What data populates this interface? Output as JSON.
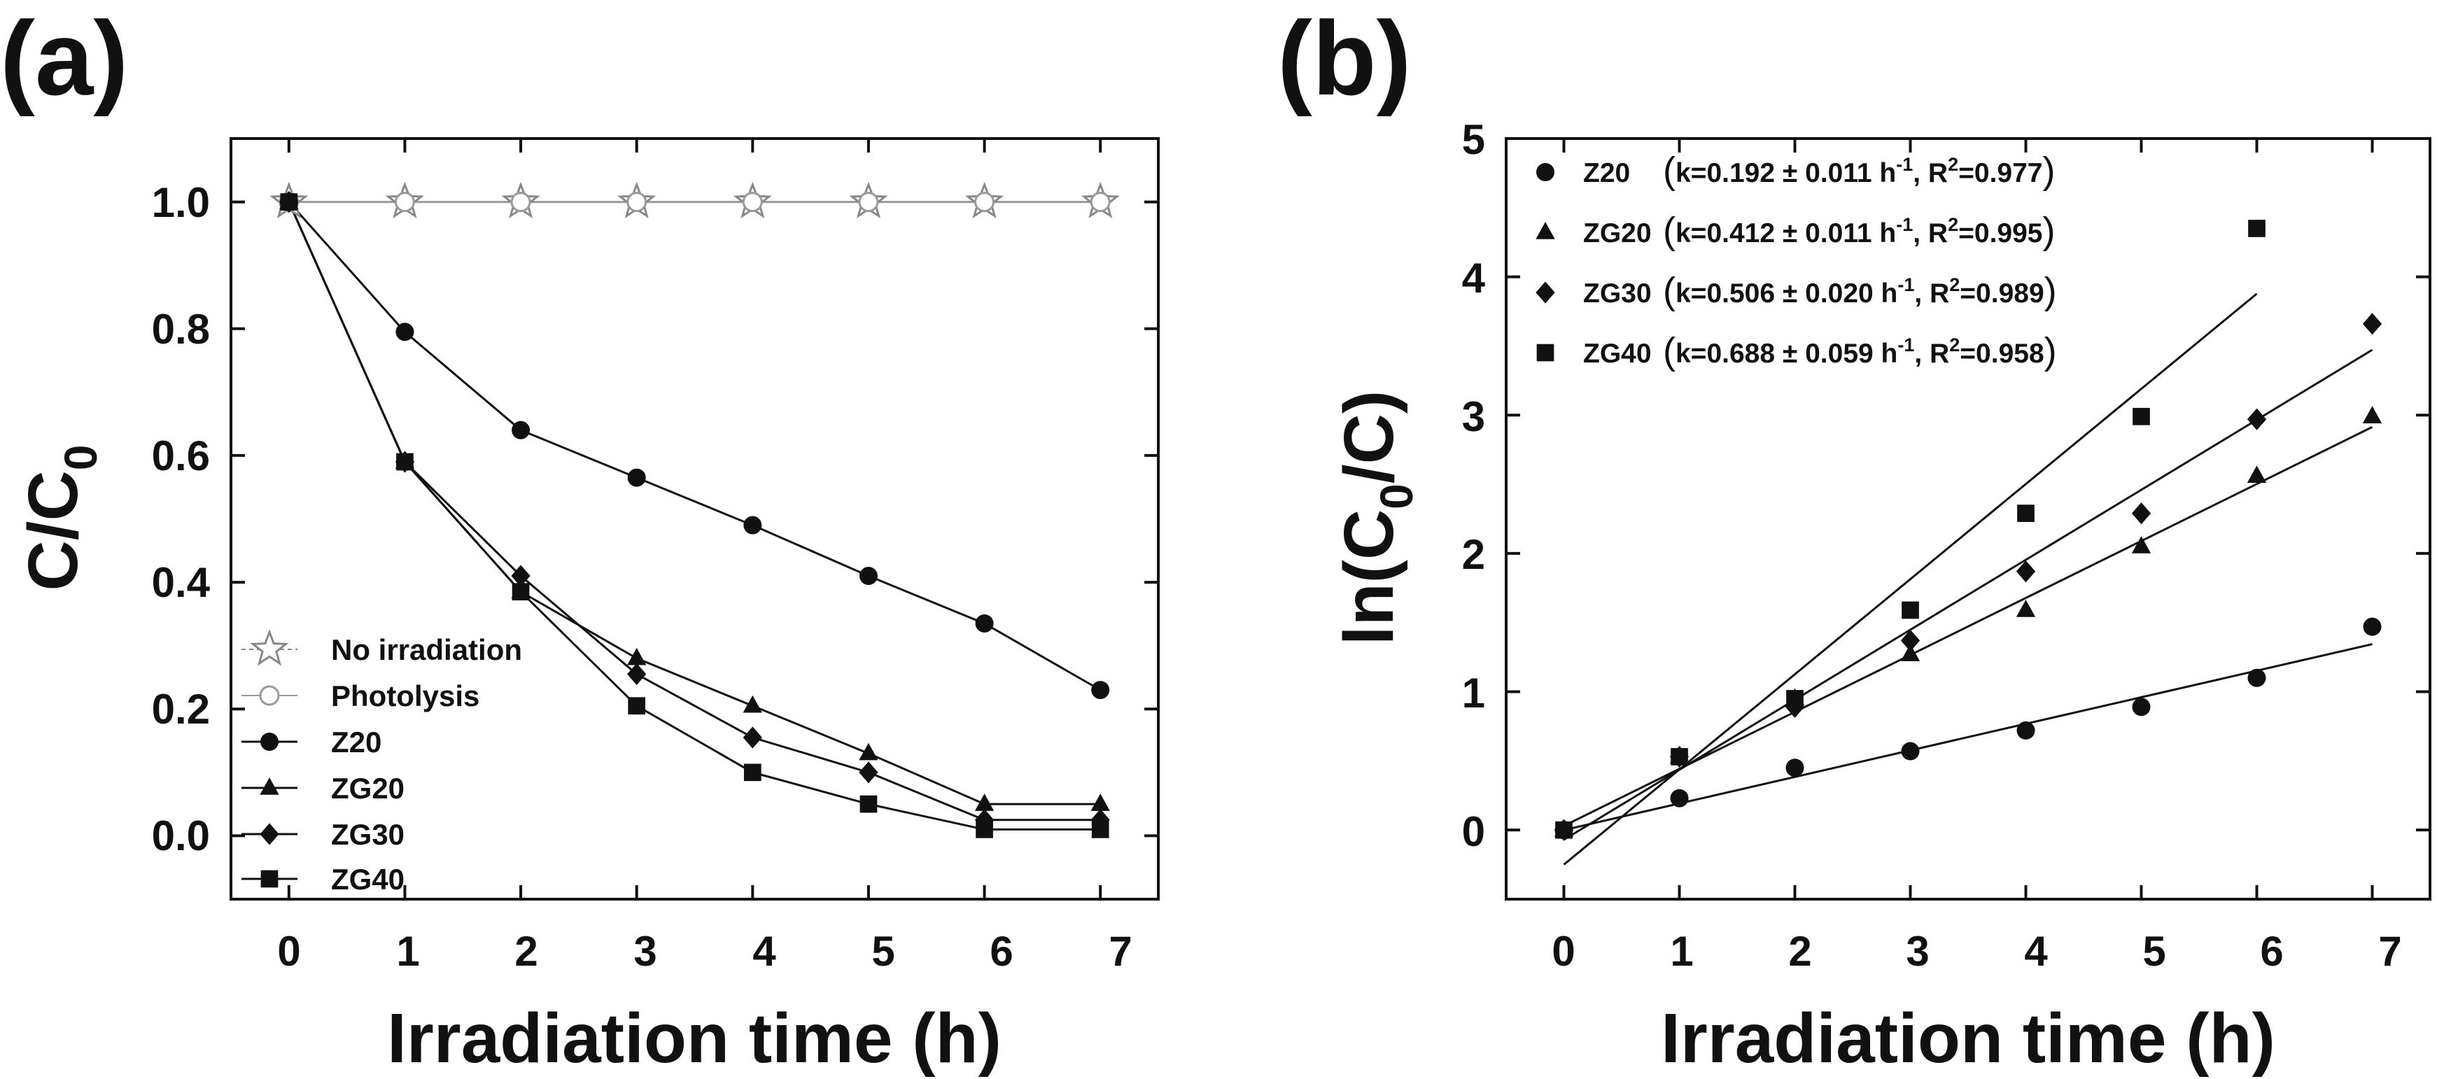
{
  "chart_data": [
    {
      "panel": "(a)",
      "type": "line",
      "xlabel": "Irradiation time (h)",
      "ylabel_main": "C/C",
      "ylabel_sub": "0",
      "xlim": [
        -0.5,
        7.5
      ],
      "ylim": [
        -0.1,
        1.1
      ],
      "xticks": [
        "0",
        "1",
        "2",
        "3",
        "4",
        "5",
        "6",
        "7"
      ],
      "yticks": [
        "0.0",
        "0.2",
        "0.4",
        "0.6",
        "0.8",
        "1.0"
      ],
      "legend_position": "bottom-left",
      "series": [
        {
          "name": "No irradiation",
          "marker": "star",
          "line": "dashed",
          "color": "#888888",
          "x": [
            0,
            1,
            2,
            3,
            4,
            5,
            6,
            7
          ],
          "y": [
            1.0,
            1.0,
            1.0,
            1.0,
            1.0,
            1.0,
            1.0,
            1.0
          ]
        },
        {
          "name": "Photolysis",
          "marker": "open-circle",
          "line": "solid",
          "color": "#999999",
          "x": [
            0,
            1,
            2,
            3,
            4,
            5,
            6,
            7
          ],
          "y": [
            1.0,
            1.0,
            1.0,
            1.0,
            1.0,
            1.0,
            1.0,
            1.0
          ]
        },
        {
          "name": "Z20",
          "marker": "circle",
          "line": "solid",
          "color": "#111111",
          "x": [
            0,
            1,
            2,
            3,
            4,
            5,
            6,
            7
          ],
          "y": [
            1.0,
            0.795,
            0.64,
            0.565,
            0.49,
            0.41,
            0.335,
            0.23
          ]
        },
        {
          "name": "ZG20",
          "marker": "triangle",
          "line": "solid",
          "color": "#111111",
          "x": [
            0,
            1,
            2,
            3,
            4,
            5,
            6,
            7
          ],
          "y": [
            1.0,
            0.59,
            0.385,
            0.28,
            0.205,
            0.13,
            0.05,
            0.05
          ]
        },
        {
          "name": "ZG30",
          "marker": "diamond",
          "line": "solid",
          "color": "#111111",
          "x": [
            0,
            1,
            2,
            3,
            4,
            5,
            6,
            7
          ],
          "y": [
            1.0,
            0.59,
            0.41,
            0.255,
            0.155,
            0.1,
            0.025,
            0.025
          ]
        },
        {
          "name": "ZG40",
          "marker": "square",
          "line": "solid",
          "color": "#111111",
          "x": [
            0,
            1,
            2,
            3,
            4,
            5,
            6,
            7
          ],
          "y": [
            1.0,
            0.59,
            0.385,
            0.205,
            0.1,
            0.05,
            0.01,
            0.01
          ]
        }
      ]
    },
    {
      "panel": "(b)",
      "type": "scatter",
      "xlabel": "Irradiation time (h)",
      "ylabel_pre": "ln(C",
      "ylabel_sub": "0",
      "ylabel_post": "/C)",
      "xlim": [
        -0.5,
        7.5
      ],
      "ylim": [
        -0.5,
        5
      ],
      "xticks": [
        "0",
        "1",
        "2",
        "3",
        "4",
        "5",
        "6",
        "7"
      ],
      "yticks": [
        "0",
        "1",
        "2",
        "3",
        "4",
        "5"
      ],
      "legend_position": "top-left",
      "series": [
        {
          "name": "Z20",
          "marker": "circle",
          "color": "#111111",
          "x": [
            0,
            1,
            2,
            3,
            4,
            5,
            6,
            7
          ],
          "y": [
            0,
            0.23,
            0.45,
            0.57,
            0.72,
            0.89,
            1.1,
            1.47
          ],
          "fit": {
            "slope": 0.192,
            "intercept": 0.0
          },
          "legend_k": "k=0.192 ± 0.011 h",
          "legend_r2": "=0.977"
        },
        {
          "name": "ZG20",
          "marker": "triangle",
          "color": "#111111",
          "x": [
            0,
            1,
            2,
            3,
            4,
            5,
            6,
            7
          ],
          "y": [
            0,
            0.53,
            0.95,
            1.27,
            1.59,
            2.05,
            2.56,
            2.99
          ],
          "fit": {
            "slope": 0.412,
            "intercept": 0.03
          },
          "legend_k": "k=0.412 ± 0.011 h",
          "legend_r2": "=0.995"
        },
        {
          "name": "ZG30",
          "marker": "diamond",
          "color": "#111111",
          "x": [
            0,
            1,
            2,
            3,
            4,
            5,
            6,
            7
          ],
          "y": [
            0,
            0.53,
            0.89,
            1.37,
            1.87,
            2.29,
            2.97,
            3.66
          ],
          "fit": {
            "slope": 0.506,
            "intercept": -0.07
          },
          "legend_k": "k=0.506 ± 0.020 h",
          "legend_r2": "=0.989"
        },
        {
          "name": "ZG40",
          "marker": "square",
          "color": "#111111",
          "x": [
            0,
            1,
            2,
            3,
            4,
            5,
            6
          ],
          "y": [
            0,
            0.53,
            0.95,
            1.59,
            2.29,
            2.99,
            4.35
          ],
          "fit": {
            "slope": 0.688,
            "intercept": -0.25
          },
          "legend_k": "k=0.688 ± 0.059 h",
          "legend_r2": "=0.958"
        }
      ],
      "legend_unit_sup": "-1",
      "legend_r_main": "R",
      "legend_r_sup": "2"
    }
  ]
}
